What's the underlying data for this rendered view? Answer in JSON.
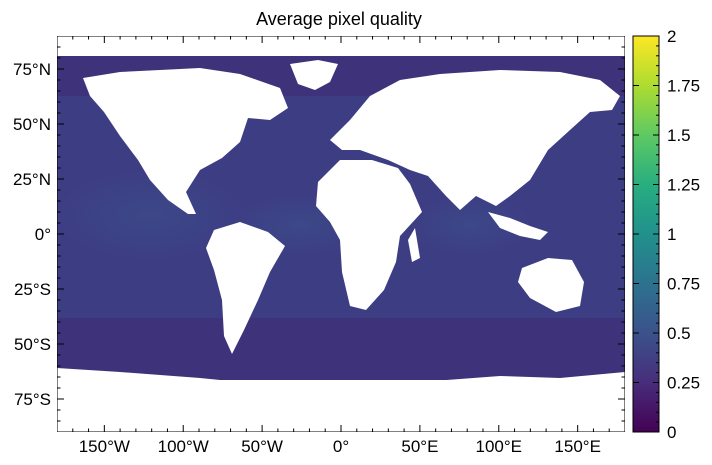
{
  "chart_data": {
    "type": "heatmap",
    "title": "Average pixel quality",
    "xlabel": "",
    "ylabel": "",
    "xlim": [
      -180,
      180
    ],
    "ylim": [
      -90,
      90
    ],
    "x_ticks": [
      -150,
      -100,
      -50,
      0,
      50,
      100,
      150
    ],
    "x_tick_labels": [
      "150°W",
      "100°W",
      "50°W",
      "0°",
      "50°E",
      "100°E",
      "150°E"
    ],
    "y_ticks": [
      75,
      50,
      25,
      0,
      -25,
      -50,
      -75
    ],
    "y_tick_labels": [
      "75°N",
      "50°N",
      "25°N",
      "0°",
      "25°S",
      "50°S",
      "75°S"
    ],
    "colorbar": {
      "colormap": "viridis",
      "range": [
        0,
        2
      ],
      "ticks": [
        0,
        0.25,
        0.5,
        0.75,
        1,
        1.25,
        1.5,
        1.75,
        2
      ],
      "tick_labels": [
        "0",
        "0.25",
        "0.5",
        "0.75",
        "1",
        "1.25",
        "1.5",
        "1.75",
        "2"
      ]
    },
    "land_color": "#ffffff",
    "ocean_typical_value": 0.4,
    "high_latitude_value": 0.1,
    "no_data_south_of": -66
  }
}
